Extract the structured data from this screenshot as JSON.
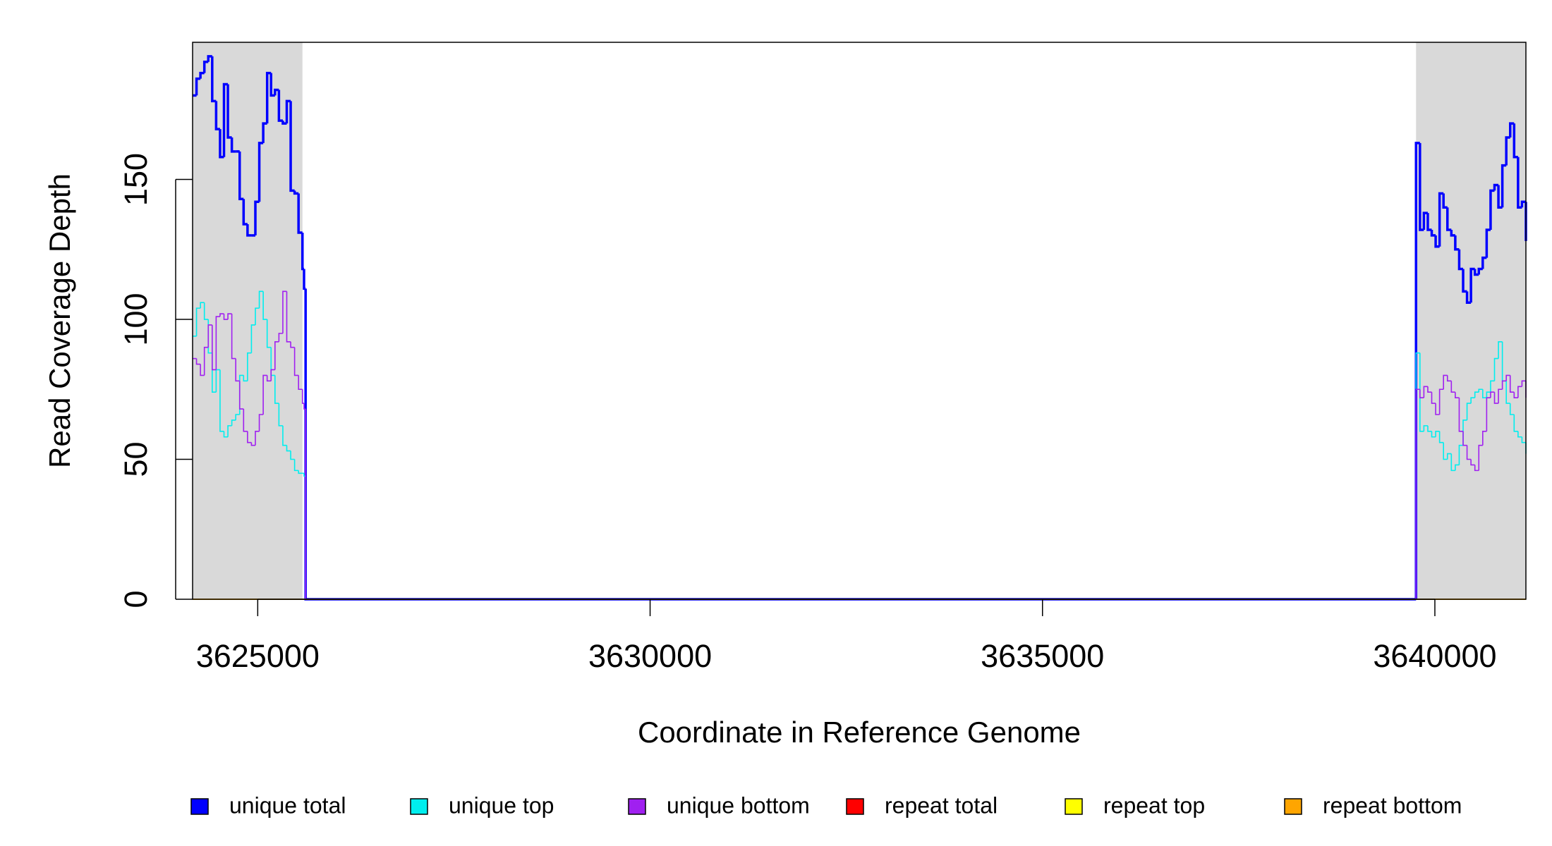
{
  "chart_data": {
    "type": "step",
    "x_label": "Coordinate in Reference Genome",
    "y_label": "Read Coverage Depth",
    "xlim": [
      3624170,
      3641160
    ],
    "ylim": [
      0,
      199
    ],
    "xticks": [
      3625000,
      3630000,
      3635000,
      3640000
    ],
    "yticks": [
      0,
      50,
      100,
      150
    ],
    "shaded_regions": [
      [
        3624170,
        3625570
      ],
      [
        3639760,
        3641160
      ]
    ],
    "shade_color": "#d9d9d9",
    "legend_position": "bottom",
    "x": [
      3624170,
      3624220,
      3624270,
      3624320,
      3624370,
      3624420,
      3624470,
      3624520,
      3624570,
      3624620,
      3624670,
      3624720,
      3624770,
      3624820,
      3624870,
      3624920,
      3624970,
      3625020,
      3625070,
      3625120,
      3625170,
      3625220,
      3625270,
      3625320,
      3625370,
      3625420,
      3625470,
      3625520,
      3625570,
      3625590,
      3625610,
      3639760,
      3639810,
      3639860,
      3639910,
      3639960,
      3640010,
      3640060,
      3640110,
      3640160,
      3640210,
      3640260,
      3640310,
      3640360,
      3640410,
      3640460,
      3640510,
      3640560,
      3640610,
      3640660,
      3640710,
      3640760,
      3640810,
      3640860,
      3640910,
      3640960,
      3641010,
      3641060,
      3641110,
      3641160
    ],
    "series": [
      {
        "name": "unique total",
        "color": "#0000ff",
        "width": 3.5,
        "values": [
          180,
          186,
          188,
          192,
          194,
          178,
          168,
          158,
          184,
          165,
          160,
          160,
          143,
          134,
          130,
          130,
          142,
          163,
          170,
          188,
          180,
          182,
          171,
          170,
          178,
          146,
          145,
          131,
          118,
          111,
          0,
          163,
          132,
          138,
          132,
          130,
          126,
          145,
          140,
          132,
          130,
          125,
          118,
          110,
          106,
          118,
          116,
          118,
          122,
          132,
          146,
          148,
          140,
          155,
          165,
          170,
          158,
          140,
          142,
          128
        ]
      },
      {
        "name": "unique top",
        "color": "#00eeee",
        "width": 1.6,
        "values": [
          94,
          104,
          106,
          100,
          88,
          74,
          82,
          60,
          58,
          62,
          64,
          66,
          80,
          78,
          88,
          98,
          104,
          110,
          100,
          90,
          80,
          70,
          62,
          55,
          53,
          50,
          46,
          45,
          45,
          44,
          0,
          88,
          60,
          62,
          60,
          58,
          60,
          56,
          50,
          52,
          46,
          48,
          55,
          64,
          70,
          72,
          74,
          75,
          72,
          74,
          78,
          86,
          92,
          78,
          70,
          66,
          60,
          58,
          56,
          52
        ]
      },
      {
        "name": "unique bottom",
        "color": "#a020f0",
        "width": 1.6,
        "values": [
          86,
          84,
          80,
          90,
          98,
          82,
          101,
          102,
          100,
          102,
          86,
          78,
          68,
          60,
          56,
          55,
          60,
          66,
          80,
          78,
          82,
          92,
          95,
          110,
          92,
          90,
          80,
          75,
          70,
          68,
          0,
          75,
          72,
          76,
          74,
          70,
          66,
          75,
          80,
          78,
          74,
          72,
          60,
          55,
          50,
          48,
          46,
          55,
          60,
          72,
          74,
          70,
          75,
          78,
          80,
          74,
          72,
          76,
          78,
          72
        ]
      },
      {
        "name": "repeat total",
        "color": "#ff0000",
        "width": 1.6,
        "values": [
          0,
          0,
          0,
          0,
          0,
          0,
          0,
          0,
          0,
          0,
          0,
          0,
          0,
          0,
          0,
          0,
          0,
          0,
          0,
          0,
          0,
          0,
          0,
          0,
          0,
          0,
          0,
          0,
          0,
          0,
          0,
          0,
          0,
          0,
          0,
          0,
          0,
          0,
          0,
          0,
          0,
          0,
          0,
          0,
          0,
          0,
          0,
          0,
          0,
          0,
          0,
          0,
          0,
          0,
          0,
          0,
          0,
          0,
          0,
          0
        ]
      },
      {
        "name": "repeat top",
        "color": "#ffff00",
        "width": 1.6,
        "values": [
          0,
          0,
          0,
          0,
          0,
          0,
          0,
          0,
          0,
          0,
          0,
          0,
          0,
          0,
          0,
          0,
          0,
          0,
          0,
          0,
          0,
          0,
          0,
          0,
          0,
          0,
          0,
          0,
          0,
          0,
          0,
          0,
          0,
          0,
          0,
          0,
          0,
          0,
          0,
          0,
          0,
          0,
          0,
          0,
          0,
          0,
          0,
          0,
          0,
          0,
          0,
          0,
          0,
          0,
          0,
          0,
          0,
          0,
          0,
          0
        ]
      },
      {
        "name": "repeat bottom",
        "color": "#ffa500",
        "width": 1.6,
        "values": [
          0,
          0,
          0,
          0,
          0,
          0,
          0,
          0,
          0,
          0,
          0,
          0,
          0,
          0,
          0,
          0,
          0,
          0,
          0,
          0,
          0,
          0,
          0,
          0,
          0,
          0,
          0,
          0,
          0,
          0,
          0,
          0,
          0,
          0,
          0,
          0,
          0,
          0,
          0,
          0,
          0,
          0,
          0,
          0,
          0,
          0,
          0,
          0,
          0,
          0,
          0,
          0,
          0,
          0,
          0,
          0,
          0,
          0,
          0,
          0
        ]
      }
    ]
  }
}
